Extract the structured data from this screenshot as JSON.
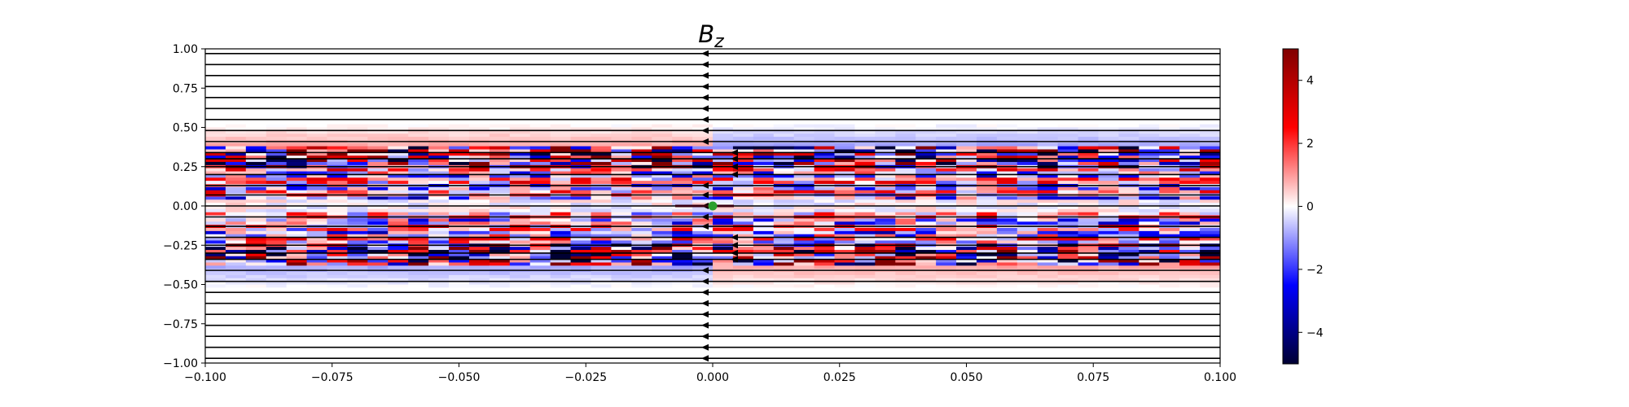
{
  "chart_data": {
    "type": "heatmap",
    "title": "B",
    "title_subscript": "z",
    "xlabel": "",
    "ylabel": "",
    "xlim": [
      -0.1,
      0.1
    ],
    "ylim": [
      -1.0,
      1.0
    ],
    "xticks": [
      -0.1,
      -0.075,
      -0.05,
      -0.025,
      0.0,
      0.025,
      0.05,
      0.075,
      0.1
    ],
    "xtick_labels": [
      "−0.100",
      "−0.075",
      "−0.050",
      "−0.025",
      "0.000",
      "0.025",
      "0.050",
      "0.075",
      "0.100"
    ],
    "yticks": [
      1.0,
      0.75,
      0.5,
      0.25,
      0.0,
      -0.25,
      -0.5,
      -0.75,
      -1.0
    ],
    "ytick_labels": [
      "1.00",
      "0.75",
      "0.50",
      "0.25",
      "0.00",
      "−0.25",
      "−0.50",
      "−0.75",
      "−1.00"
    ],
    "colormap": "seismic",
    "colorbar": {
      "vmin": -5,
      "vmax": 5,
      "ticks": [
        4,
        2,
        0,
        -2,
        -4
      ],
      "tick_labels": [
        "4",
        "2",
        "0",
        "−2",
        "−4"
      ],
      "colors": [
        "#000033",
        "#0000ff",
        "#ffffff",
        "#ff0000",
        "#800000"
      ]
    },
    "field_lines": {
      "direction": "negative-x",
      "y_levels": [
        0.97,
        0.9,
        0.83,
        0.76,
        0.69,
        0.62,
        0.55,
        0.48,
        0.41,
        0.34,
        0.3,
        0.25,
        0.2,
        0.13,
        0.07,
        0.0,
        -0.07,
        -0.13,
        -0.2,
        -0.25,
        -0.3,
        -0.34,
        -0.41,
        -0.48,
        -0.55,
        -0.62,
        -0.69,
        -0.76,
        -0.83,
        -0.9,
        -0.97
      ]
    },
    "marker": {
      "x": 0.0,
      "y": 0.0,
      "color": "#2ca02c"
    },
    "grid": false,
    "legend": "none"
  }
}
